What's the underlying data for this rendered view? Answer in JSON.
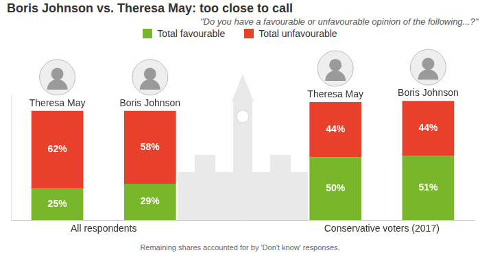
{
  "chart_data": {
    "type": "bar",
    "title": "Boris Johnson vs. Theresa May: too close to call",
    "subtitle": "\"Do you have a favourable or unfavourable opinion of the following...?\"",
    "categories": [
      "Theresa May",
      "Boris Johnson",
      null,
      "Theresa May",
      "Boris Johnson"
    ],
    "groups": [
      "All respondents",
      "Conservative voters (2017)"
    ],
    "series": [
      {
        "name": "Total favourable",
        "color": "#78b72a",
        "values": [
          25,
          29,
          null,
          50,
          51
        ],
        "value_labels": [
          "25%",
          "29%",
          null,
          "50%",
          "51%"
        ]
      },
      {
        "name": "Total unfavourable",
        "color": "#e8402a",
        "values": [
          62,
          58,
          null,
          44,
          44
        ],
        "value_labels": [
          "62%",
          "58%",
          null,
          "44%",
          "44%"
        ]
      }
    ],
    "ylim": [
      0,
      100
    ],
    "stacked": true,
    "data_labels": true,
    "legend": "top",
    "grid": false,
    "tick_labels": false,
    "footnote": "Remaining shares accounted for by 'Don't know' responses."
  }
}
